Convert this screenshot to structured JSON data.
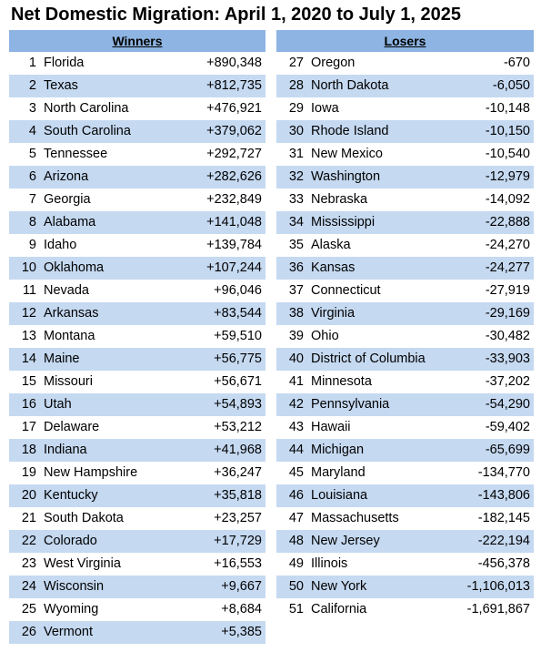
{
  "title": "Net Domestic Migration: April 1, 2020 to July 1, 2025",
  "winners": {
    "header": "Winners",
    "rows": [
      [
        1,
        "Florida",
        "+890,348"
      ],
      [
        2,
        "Texas",
        "+812,735"
      ],
      [
        3,
        "North Carolina",
        "+476,921"
      ],
      [
        4,
        "South Carolina",
        "+379,062"
      ],
      [
        5,
        "Tennessee",
        "+292,727"
      ],
      [
        6,
        "Arizona",
        "+282,626"
      ],
      [
        7,
        "Georgia",
        "+232,849"
      ],
      [
        8,
        "Alabama",
        "+141,048"
      ],
      [
        9,
        "Idaho",
        "+139,784"
      ],
      [
        10,
        "Oklahoma",
        "+107,244"
      ],
      [
        11,
        "Nevada",
        "+96,046"
      ],
      [
        12,
        "Arkansas",
        "+83,544"
      ],
      [
        13,
        "Montana",
        "+59,510"
      ],
      [
        14,
        "Maine",
        "+56,775"
      ],
      [
        15,
        "Missouri",
        "+56,671"
      ],
      [
        16,
        "Utah",
        "+54,893"
      ],
      [
        17,
        "Delaware",
        "+53,212"
      ],
      [
        18,
        "Indiana",
        "+41,968"
      ],
      [
        19,
        "New Hampshire",
        "+36,247"
      ],
      [
        20,
        "Kentucky",
        "+35,818"
      ],
      [
        21,
        "South Dakota",
        "+23,257"
      ],
      [
        22,
        "Colorado",
        "+17,729"
      ],
      [
        23,
        "West Virginia",
        "+16,553"
      ],
      [
        24,
        "Wisconsin",
        "+9,667"
      ],
      [
        25,
        "Wyoming",
        "+8,684"
      ],
      [
        26,
        "Vermont",
        "+5,385"
      ]
    ]
  },
  "losers": {
    "header": "Losers",
    "rows": [
      [
        27,
        "Oregon",
        "-670"
      ],
      [
        28,
        "North Dakota",
        "-6,050"
      ],
      [
        29,
        "Iowa",
        "-10,148"
      ],
      [
        30,
        "Rhode Island",
        "-10,150"
      ],
      [
        31,
        "New Mexico",
        "-10,540"
      ],
      [
        32,
        "Washington",
        "-12,979"
      ],
      [
        33,
        "Nebraska",
        "-14,092"
      ],
      [
        34,
        "Mississippi",
        "-22,888"
      ],
      [
        35,
        "Alaska",
        "-24,270"
      ],
      [
        36,
        "Kansas",
        "-24,277"
      ],
      [
        37,
        "Connecticut",
        "-27,919"
      ],
      [
        38,
        "Virginia",
        "-29,169"
      ],
      [
        39,
        "Ohio",
        "-30,482"
      ],
      [
        40,
        "District of Columbia",
        "-33,903"
      ],
      [
        41,
        "Minnesota",
        "-37,202"
      ],
      [
        42,
        "Pennsylvania",
        "-54,290"
      ],
      [
        43,
        "Hawaii",
        "-59,402"
      ],
      [
        44,
        "Michigan",
        "-65,699"
      ],
      [
        45,
        "Maryland",
        "-134,770"
      ],
      [
        46,
        "Louisiana",
        "-143,806"
      ],
      [
        47,
        "Massachusetts",
        "-182,145"
      ],
      [
        48,
        "New Jersey",
        "-222,194"
      ],
      [
        49,
        "Illinois",
        "-456,378"
      ],
      [
        50,
        "New York",
        "-1,106,013"
      ],
      [
        51,
        "California",
        "-1,691,867"
      ]
    ]
  }
}
